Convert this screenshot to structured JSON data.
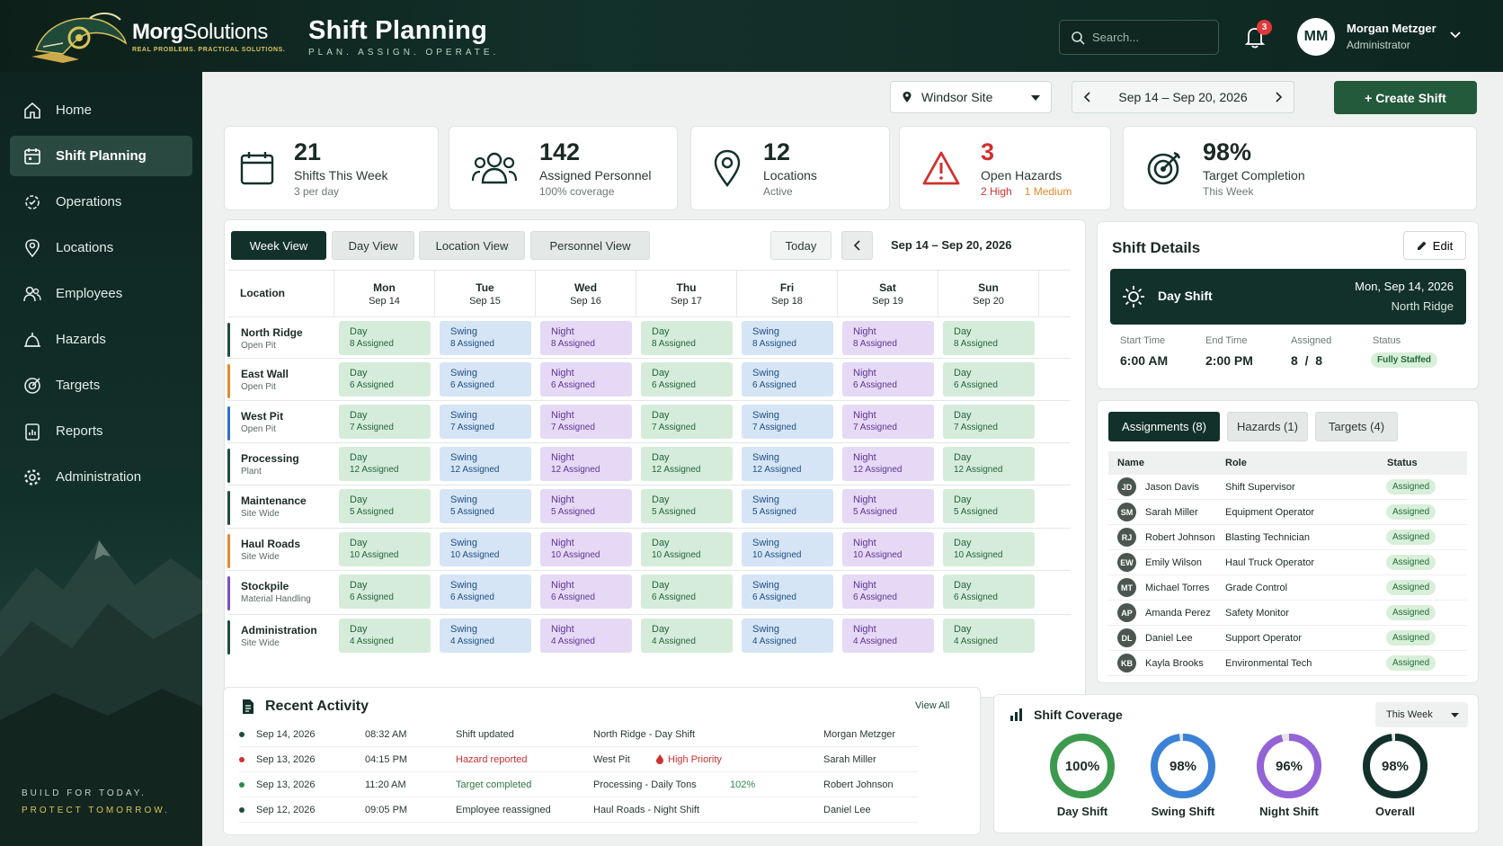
{
  "brand": {
    "name_bold": "Morg",
    "name_rest": "Solutions",
    "tagline": "REAL PROBLEMS. PRACTICAL SOLUTIONS."
  },
  "header": {
    "title": "Shift Planning",
    "subtitle": "PLAN. ASSIGN. OPERATE.",
    "search_placeholder": "Search...",
    "notifications": "3",
    "user_initials": "MM",
    "user_name": "Morgan Metzger",
    "user_role": "Administrator"
  },
  "sidebar": {
    "items": [
      {
        "label": "Home",
        "icon": "home-icon"
      },
      {
        "label": "Shift Planning",
        "icon": "calendar-icon",
        "active": true
      },
      {
        "label": "Operations",
        "icon": "gear-check-icon"
      },
      {
        "label": "Locations",
        "icon": "pin-icon"
      },
      {
        "label": "Employees",
        "icon": "people-icon"
      },
      {
        "label": "Hazards",
        "icon": "hazard-icon"
      },
      {
        "label": "Targets",
        "icon": "target-icon"
      },
      {
        "label": "Reports",
        "icon": "report-icon"
      },
      {
        "label": "Administration",
        "icon": "gear-icon"
      }
    ],
    "footer_line1": "BUILD FOR TODAY.",
    "footer_line2": "PROTECT TOMORROW."
  },
  "toolbar": {
    "site": "Windsor Site",
    "date_range": "Sep 14 – Sep 20, 2026",
    "create": "+ Create Shift"
  },
  "kpis": {
    "shifts": {
      "value": "21",
      "label": "Shifts This Week",
      "sub": "3 per day"
    },
    "personnel": {
      "value": "142",
      "label": "Assigned Personnel",
      "sub": "100% coverage"
    },
    "locations": {
      "value": "12",
      "label": "Locations",
      "sub": "Active"
    },
    "hazards": {
      "value": "3",
      "label": "Open Hazards",
      "high": "2 High",
      "medium": "1 Medium"
    },
    "target": {
      "value": "98%",
      "label": "Target Completion",
      "sub": "This Week"
    }
  },
  "views": {
    "week": "Week View",
    "day": "Day View",
    "location": "Location View",
    "personnel": "Personnel View",
    "today": "Today",
    "range": "Sep 14 – Sep 20, 2026"
  },
  "schedule": {
    "location_header": "Location",
    "days": [
      {
        "d": "Mon",
        "date": "Sep 14"
      },
      {
        "d": "Tue",
        "date": "Sep 15"
      },
      {
        "d": "Wed",
        "date": "Sep 16"
      },
      {
        "d": "Thu",
        "date": "Sep 17"
      },
      {
        "d": "Fri",
        "date": "Sep 18"
      },
      {
        "d": "Sat",
        "date": "Sep 19"
      },
      {
        "d": "Sun",
        "date": "Sep 20"
      }
    ],
    "shifts": [
      "Day",
      "Swing",
      "Night",
      "Day",
      "Swing",
      "Night",
      "Day"
    ],
    "rows": [
      {
        "name": "North Ridge",
        "type": "Open Pit",
        "count": "8 Assigned",
        "color": "#1e4d3a"
      },
      {
        "name": "East Wall",
        "type": "Open Pit",
        "count": "6 Assigned",
        "color": "#e08a2c"
      },
      {
        "name": "West Pit",
        "type": "Open Pit",
        "count": "7 Assigned",
        "color": "#2f6fd0"
      },
      {
        "name": "Processing",
        "type": "Plant",
        "count": "12 Assigned",
        "color": "#1e4d3a"
      },
      {
        "name": "Maintenance",
        "type": "Site Wide",
        "count": "5 Assigned",
        "color": "#1e4d3a"
      },
      {
        "name": "Haul Roads",
        "type": "Site Wide",
        "count": "10 Assigned",
        "color": "#e08a2c"
      },
      {
        "name": "Stockpile",
        "type": "Material Handling",
        "count": "6 Assigned",
        "color": "#7b4fc4"
      },
      {
        "name": "Administration",
        "type": "Site Wide",
        "count": "4 Assigned",
        "color": "#1e4d3a"
      }
    ]
  },
  "details": {
    "title": "Shift Details",
    "edit": "Edit",
    "shift": "Day Shift",
    "date": "Mon, Sep 14, 2026",
    "location": "North Ridge",
    "start_label": "Start Time",
    "start": "6:00 AM",
    "end_label": "End Time",
    "end": "2:00 PM",
    "assigned_label": "Assigned",
    "assigned": "8  /  8",
    "status_label": "Status",
    "status": "Fully Staffed",
    "tabs": [
      "Assignments (8)",
      "Hazards (1)",
      "Targets (4)"
    ],
    "cols": [
      "Name",
      "Role",
      "Status"
    ],
    "people": [
      {
        "i": "JD",
        "name": "Jason Davis",
        "role": "Shift Supervisor",
        "status": "Assigned"
      },
      {
        "i": "SM",
        "name": "Sarah Miller",
        "role": "Equipment Operator",
        "status": "Assigned"
      },
      {
        "i": "RJ",
        "name": "Robert Johnson",
        "role": "Blasting Technician",
        "status": "Assigned"
      },
      {
        "i": "EW",
        "name": "Emily Wilson",
        "role": "Haul Truck Operator",
        "status": "Assigned"
      },
      {
        "i": "MT",
        "name": "Michael Torres",
        "role": "Grade Control",
        "status": "Assigned"
      },
      {
        "i": "AP",
        "name": "Amanda Perez",
        "role": "Safety Monitor",
        "status": "Assigned"
      },
      {
        "i": "DL",
        "name": "Daniel Lee",
        "role": "Support Operator",
        "status": "Assigned"
      },
      {
        "i": "KB",
        "name": "Kayla Brooks",
        "role": "Environmental Tech",
        "status": "Assigned"
      }
    ]
  },
  "activity": {
    "title": "Recent Activity",
    "view_all": "View All",
    "rows": [
      {
        "date": "Sep 14, 2026",
        "time": "08:32 AM",
        "event": "Shift updated",
        "detail": "North Ridge  -  Day Shift",
        "extra": "",
        "user": "Morgan Metzger",
        "color": "#1e4d3a",
        "event_color": "#2a3832"
      },
      {
        "date": "Sep 13, 2026",
        "time": "04:15 PM",
        "event": "Hazard reported",
        "detail": "West Pit",
        "extra": "High Priority",
        "user": "Sarah Miller",
        "color": "#d0302f",
        "event_color": "#d0302f"
      },
      {
        "date": "Sep 13, 2026",
        "time": "11:20 AM",
        "event": "Target completed",
        "detail": "Processing  -  Daily Tons",
        "extra": "102%",
        "user": "Robert Johnson",
        "color": "#2d8a45",
        "event_color": "#2d7a3e"
      },
      {
        "date": "Sep 12, 2026",
        "time": "09:05 PM",
        "event": "Employee reassigned",
        "detail": "Haul Roads  -  Night Shift",
        "extra": "",
        "user": "Daniel Lee",
        "color": "#1e4d3a",
        "event_color": "#2a3832"
      }
    ]
  },
  "coverage": {
    "title": "Shift Coverage",
    "period": "This Week",
    "items": [
      {
        "label": "Day Shift",
        "value": 100,
        "text": "100%",
        "color": "#3c9a4e"
      },
      {
        "label": "Swing Shift",
        "value": 98,
        "text": "98%",
        "color": "#3b82d6"
      },
      {
        "label": "Night Shift",
        "value": 96,
        "text": "96%",
        "color": "#9463d6"
      },
      {
        "label": "Overall",
        "value": 98,
        "text": "98%",
        "color": "#12312a"
      }
    ]
  }
}
